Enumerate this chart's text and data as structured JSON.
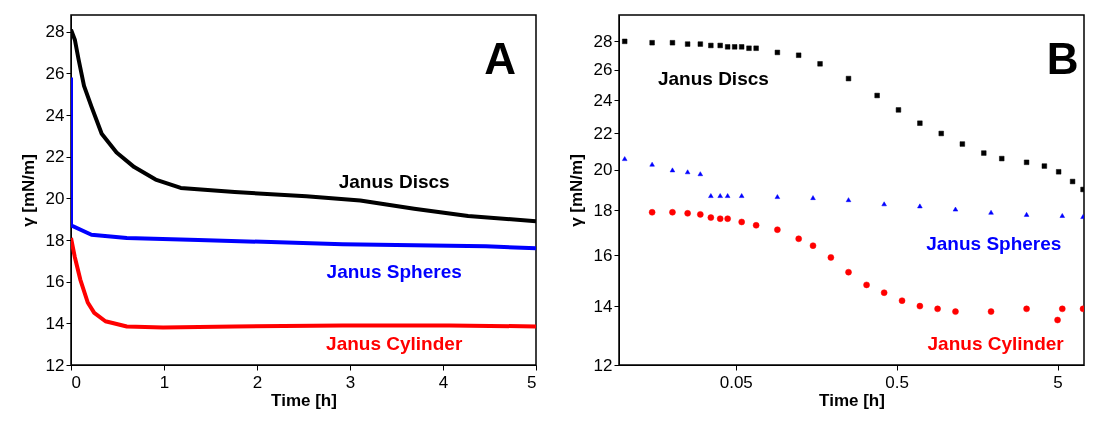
{
  "chart_data": [
    {
      "type": "line",
      "title": "A",
      "xlabel": "Time [h]",
      "ylabel": "γ [mN/m]",
      "xlim": [
        0,
        5
      ],
      "xticks": [
        0,
        1,
        2,
        3,
        4,
        5
      ],
      "ylim": [
        12,
        28.8
      ],
      "yticks": [
        12,
        14,
        16,
        18,
        20,
        22,
        24,
        26,
        28
      ],
      "marker": "none",
      "series": [
        {
          "name": "Janus Discs",
          "color": "#000000",
          "x": [
            0,
            0.042,
            0.08,
            0.14,
            0.22,
            0.33,
            0.49,
            0.68,
            0.91,
            1.18,
            1.76,
            2.53,
            3.11,
            3.69,
            4.27,
            5
          ],
          "values": [
            28.1,
            27.6,
            26.7,
            25.4,
            24.4,
            23.1,
            22.2,
            21.5,
            20.9,
            20.5,
            20.3,
            20.1,
            19.9,
            19.5,
            19.15,
            18.9
          ]
        },
        {
          "name": "Janus Spheres",
          "color": "#0000ff",
          "x": [
            0,
            0,
            0,
            0,
            0,
            0,
            0.22,
            0.6,
            1.37,
            2.15,
            2.92,
            3.69,
            4.46,
            5
          ],
          "values": [
            25.8,
            23.7,
            21.2,
            20.5,
            19.9,
            18.7,
            18.25,
            18.1,
            18.0,
            17.9,
            17.8,
            17.75,
            17.7,
            17.6
          ]
        },
        {
          "name": "Janus Cylinder",
          "color": "#ff0000",
          "x": [
            0,
            0.04,
            0.1,
            0.18,
            0.25,
            0.37,
            0.6,
            0.99,
            1.76,
            2.92,
            4.07,
            5
          ],
          "values": [
            18.1,
            17.2,
            16.1,
            15.0,
            14.5,
            14.1,
            13.85,
            13.8,
            13.85,
            13.9,
            13.9,
            13.85
          ]
        }
      ]
    },
    {
      "type": "scatter",
      "title": "B",
      "xlabel": "Time [h]",
      "ylabel": "γ [mN/m]",
      "log": "xy",
      "xlim": [
        0.0094,
        7.3
      ],
      "xticks": [
        0.05,
        0.5,
        5
      ],
      "ylim": [
        12,
        30
      ],
      "yticks": [
        12,
        14,
        16,
        18,
        20,
        22,
        24,
        26,
        28
      ],
      "series": [
        {
          "name": "Janus Discs",
          "color": "#000000",
          "marker": "square",
          "x": [
            0.0102,
            0.0151,
            0.0202,
            0.0251,
            0.0301,
            0.035,
            0.04,
            0.0445,
            0.0492,
            0.0544,
            0.0604,
            0.0669,
            0.0907,
            0.123,
            0.167,
            0.251,
            0.378,
            0.513,
            0.697,
            0.946,
            1.28,
            1.74,
            2.25,
            3.21,
            4.14,
            5.08,
            6.2,
            7.2
          ],
          "values": [
            28.0,
            27.9,
            27.9,
            27.8,
            27.8,
            27.7,
            27.7,
            27.6,
            27.6,
            27.6,
            27.5,
            27.5,
            27.2,
            27.0,
            26.4,
            25.4,
            24.3,
            23.4,
            22.6,
            22.0,
            21.4,
            20.9,
            20.6,
            20.4,
            20.2,
            19.9,
            19.4,
            19.0
          ]
        },
        {
          "name": "Janus Spheres",
          "color": "#0000ff",
          "marker": "triangle",
          "x": [
            0.0102,
            0.0151,
            0.0202,
            0.0251,
            0.0301,
            0.035,
            0.04,
            0.0445,
            0.0544,
            0.0907,
            0.151,
            0.251,
            0.418,
            0.697,
            1.16,
            1.93,
            3.21,
            5.35,
            7.2
          ],
          "values": [
            20.6,
            20.3,
            20.0,
            19.9,
            19.8,
            18.7,
            18.7,
            18.7,
            18.7,
            18.65,
            18.6,
            18.5,
            18.3,
            18.2,
            18.05,
            17.9,
            17.8,
            17.75,
            17.7
          ]
        },
        {
          "name": "Janus Cylinder",
          "color": "#ff0000",
          "marker": "circle",
          "x": [
            0.0151,
            0.0202,
            0.0251,
            0.0301,
            0.035,
            0.04,
            0.0445,
            0.0544,
            0.0669,
            0.0907,
            0.123,
            0.151,
            0.195,
            0.251,
            0.325,
            0.418,
            0.54,
            0.697,
            0.898,
            1.16,
            1.93,
            3.21,
            5.0,
            5.35,
            7.2
          ],
          "values": [
            17.9,
            17.9,
            17.85,
            17.8,
            17.65,
            17.6,
            17.6,
            17.45,
            17.3,
            17.1,
            16.7,
            16.4,
            15.9,
            15.3,
            14.8,
            14.5,
            14.2,
            14.0,
            13.9,
            13.8,
            13.8,
            13.9,
            13.5,
            13.9,
            13.9
          ]
        }
      ]
    }
  ]
}
